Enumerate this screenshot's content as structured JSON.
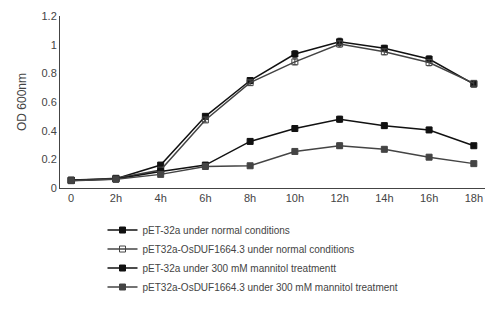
{
  "chart_data": {
    "type": "line",
    "y_label": "OD 600nm",
    "x": [
      0,
      2,
      4,
      6,
      8,
      10,
      12,
      14,
      16,
      18
    ],
    "xlim": [
      -0.5,
      18.5
    ],
    "xticks": [
      0,
      {
        "value": 2,
        "label": "2h"
      },
      {
        "value": 4,
        "label": "4h"
      },
      {
        "value": 6,
        "label": "6h"
      },
      {
        "value": 8,
        "label": "8h"
      },
      {
        "value": 10,
        "label": "10h"
      },
      {
        "value": 12,
        "label": "12h"
      },
      {
        "value": 14,
        "label": "14h"
      },
      {
        "value": 16,
        "label": "16h"
      },
      {
        "value": 18,
        "label": "18h"
      }
    ],
    "ylim": [
      0,
      1.2
    ],
    "yticks": [
      0,
      0.2,
      0.4,
      0.6,
      0.8,
      1,
      1.2
    ],
    "grid": false,
    "legend": "bottom",
    "series": [
      {
        "name": "pET-32a under normal conditions",
        "color": "#111111",
        "marker": "square",
        "values": [
          0.055,
          0.065,
          0.16,
          0.5,
          0.75,
          0.935,
          1.02,
          0.975,
          0.9,
          0.725
        ],
        "errors": [
          0.008,
          0.006,
          0.012,
          0.015,
          0.018,
          0.022,
          0.025,
          0.02,
          0.02,
          0.018
        ]
      },
      {
        "name": "pET32a-OsDUF1664.3 under normal conditions",
        "color": "#444444",
        "marker": "square-open",
        "values": [
          0.053,
          0.068,
          0.125,
          0.475,
          0.735,
          0.88,
          1.005,
          0.95,
          0.875,
          0.73
        ],
        "errors": [
          0.008,
          0.006,
          0.012,
          0.015,
          0.018,
          0.02,
          0.022,
          0.02,
          0.022,
          0.018
        ]
      },
      {
        "name": "pET-32a under 300 mM mannitol treatmentt",
        "color": "#111111",
        "marker": "square",
        "values": [
          0.053,
          0.063,
          0.115,
          0.16,
          0.325,
          0.415,
          0.48,
          0.435,
          0.405,
          0.295
        ],
        "errors": [
          0.007,
          0.006,
          0.01,
          0.012,
          0.015,
          0.018,
          0.02,
          0.018,
          0.018,
          0.014
        ]
      },
      {
        "name": "pET32a-OsDUF1664.3 under 300 mM mannitol treatment",
        "color": "#444444",
        "marker": "square",
        "values": [
          0.051,
          0.061,
          0.095,
          0.15,
          0.155,
          0.255,
          0.295,
          0.27,
          0.215,
          0.17
        ],
        "errors": [
          0.007,
          0.006,
          0.01,
          0.011,
          0.012,
          0.015,
          0.018,
          0.015,
          0.014,
          0.012
        ]
      }
    ]
  }
}
